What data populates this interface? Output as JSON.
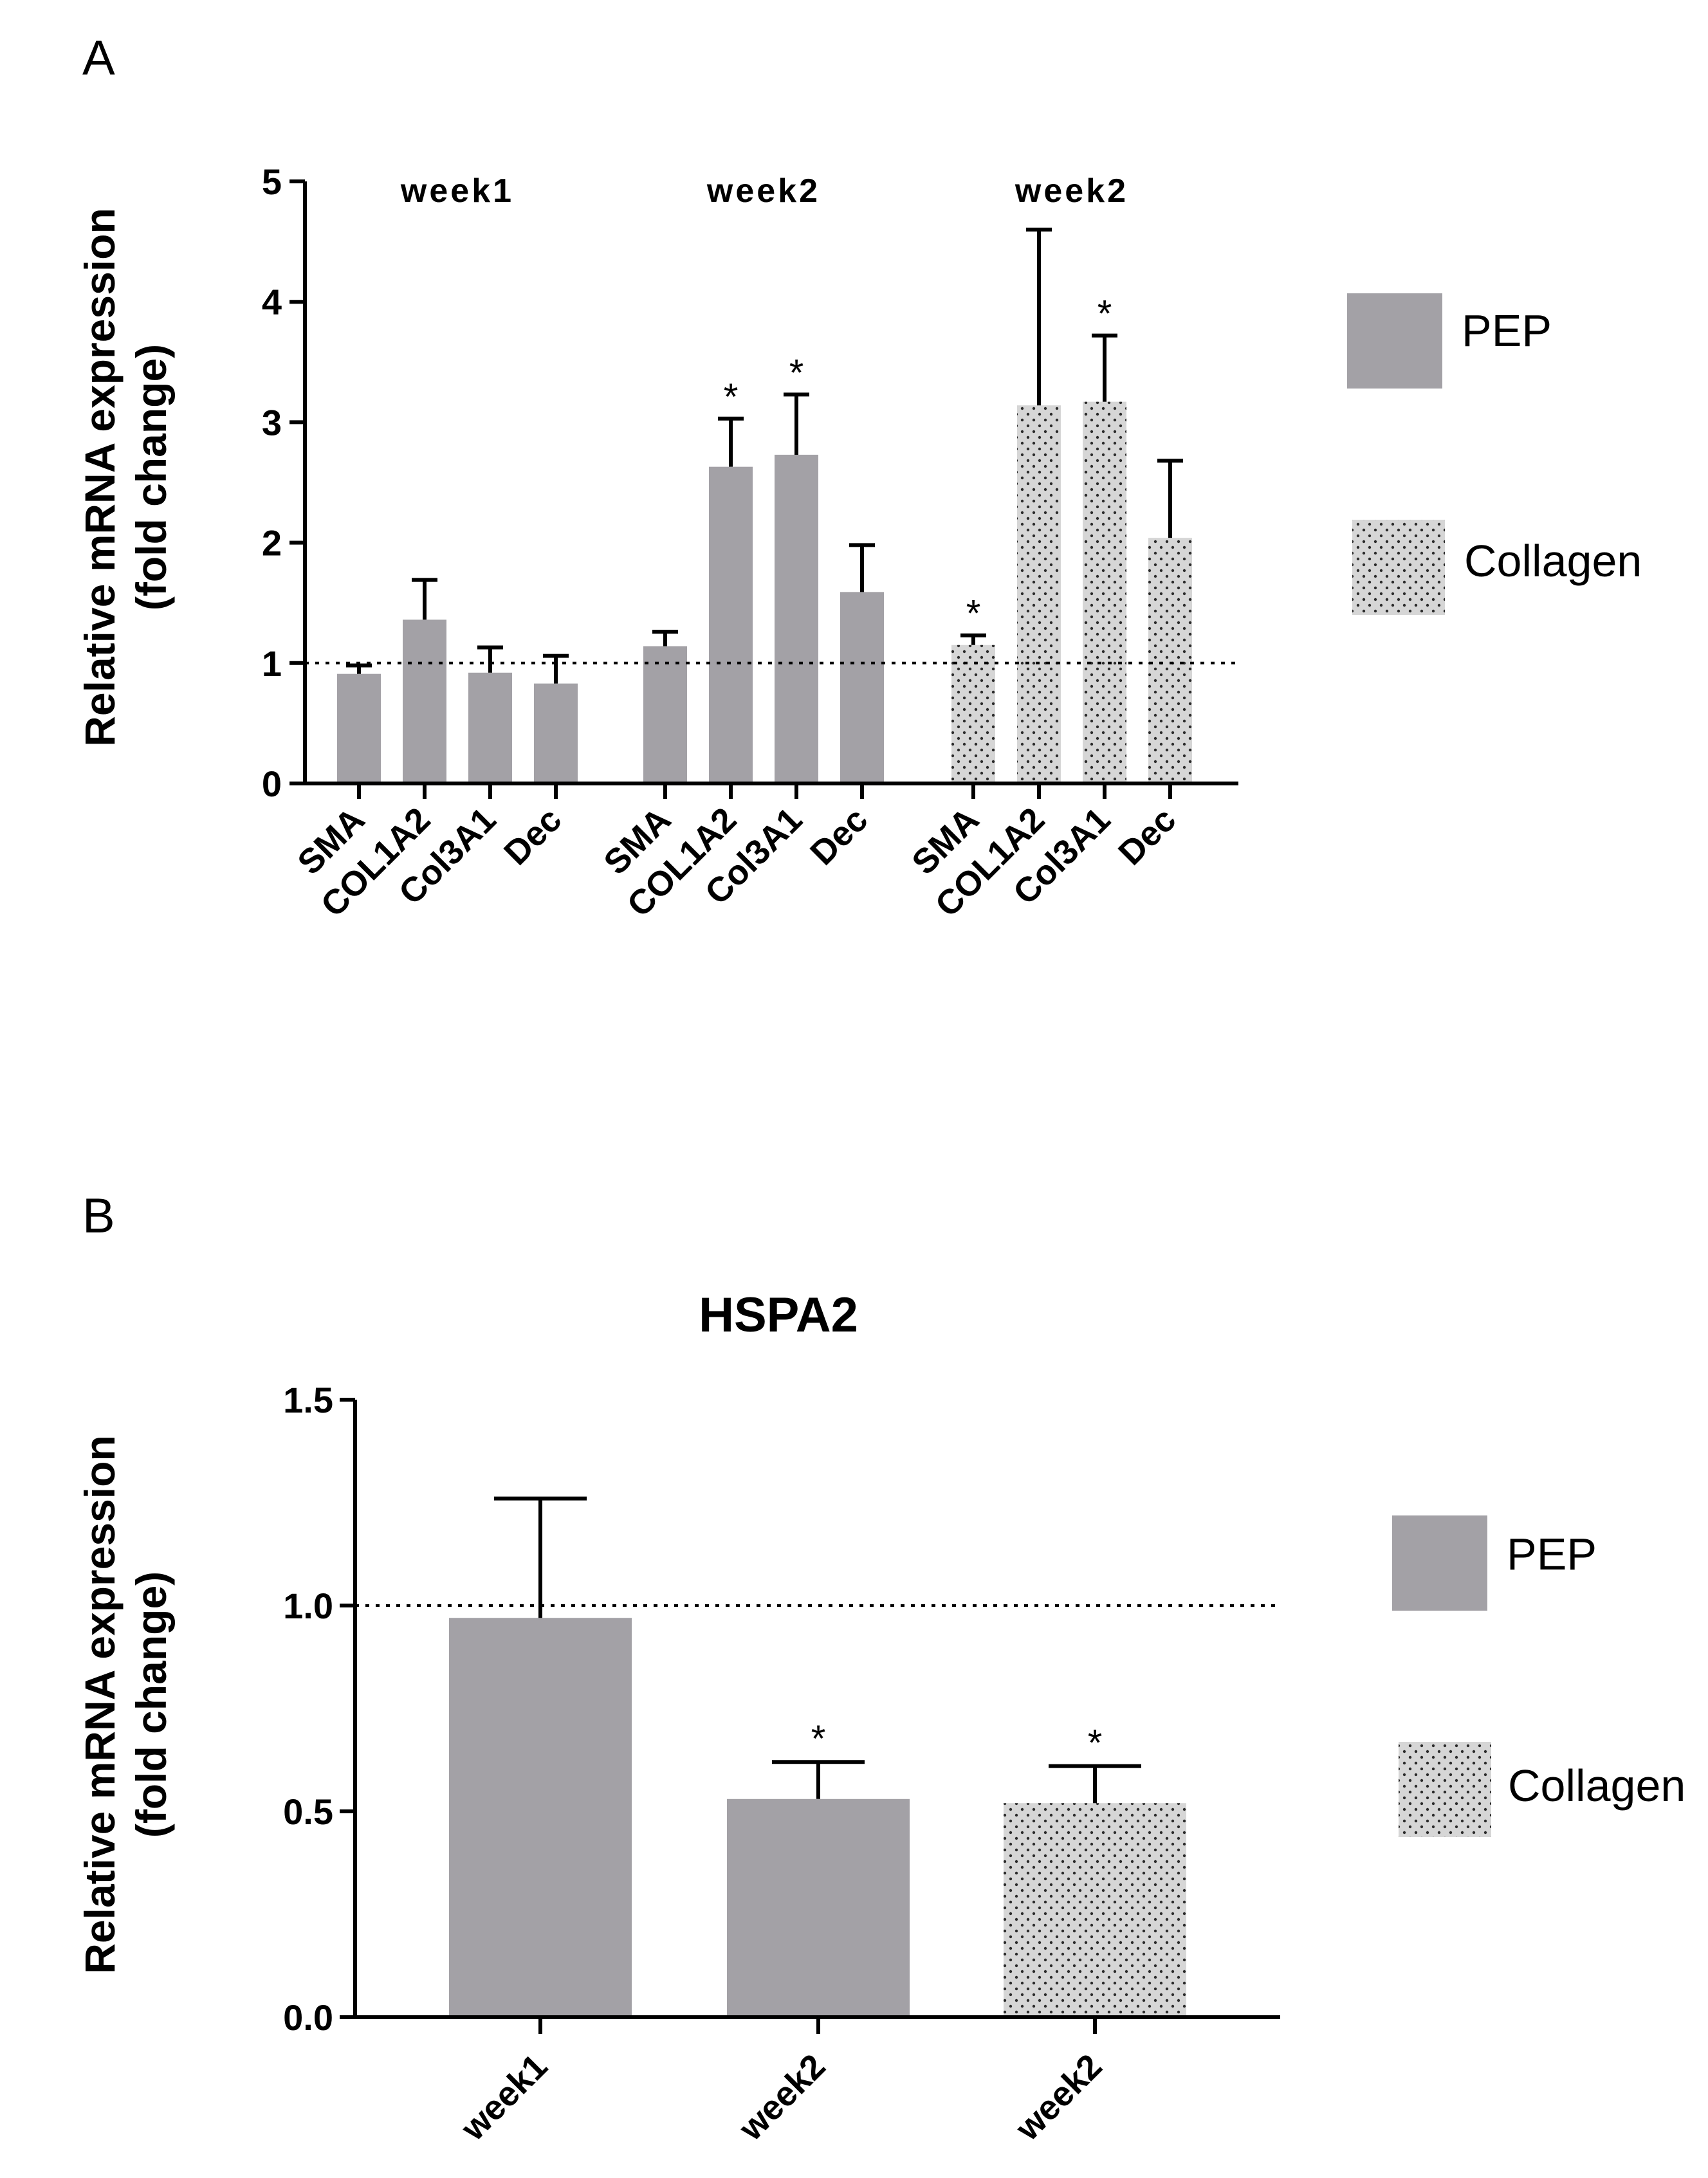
{
  "colors": {
    "pep": "#a3a1a6",
    "collagen": "#d6d6d6",
    "dot": "#2a2a2a",
    "axis": "#000000"
  },
  "legend_A": [
    {
      "label": "PEP",
      "series": "pep"
    },
    {
      "label": "Collagen",
      "series": "collagen"
    }
  ],
  "legend_B": [
    {
      "label": "PEP",
      "series": "pep"
    },
    {
      "label": "Collagen",
      "series": "collagen"
    }
  ],
  "chart_data": [
    {
      "panel_label": "A",
      "type": "bar",
      "title": "",
      "ylabel": "Relative mRNA expression",
      "ylabel2": "(fold change)",
      "ylim": [
        0,
        5
      ],
      "yticks": [
        "0",
        "1",
        "2",
        "3",
        "4",
        "5"
      ],
      "reference_line": 1,
      "groups": [
        {
          "label": "week1",
          "series": "pep",
          "bars": [
            {
              "category": "SMA",
              "value": 0.91,
              "error": 0.07,
              "sig": ""
            },
            {
              "category": "COL1A2",
              "value": 1.36,
              "error": 0.33,
              "sig": ""
            },
            {
              "category": "Col3A1",
              "value": 0.92,
              "error": 0.21,
              "sig": ""
            },
            {
              "category": "Dec",
              "value": 0.83,
              "error": 0.23,
              "sig": ""
            }
          ]
        },
        {
          "label": "week2",
          "series": "pep",
          "bars": [
            {
              "category": "SMA",
              "value": 1.14,
              "error": 0.12,
              "sig": ""
            },
            {
              "category": "COL1A2",
              "value": 2.63,
              "error": 0.4,
              "sig": "*"
            },
            {
              "category": "Col3A1",
              "value": 2.73,
              "error": 0.5,
              "sig": "*"
            },
            {
              "category": "Dec",
              "value": 1.59,
              "error": 0.39,
              "sig": ""
            }
          ]
        },
        {
          "label": "week2",
          "series": "collagen",
          "bars": [
            {
              "category": "SMA",
              "value": 1.15,
              "error": 0.08,
              "sig": "*"
            },
            {
              "category": "COL1A2",
              "value": 3.14,
              "error": 1.46,
              "sig": ""
            },
            {
              "category": "Col3A1",
              "value": 3.17,
              "error": 0.55,
              "sig": "*"
            },
            {
              "category": "Dec",
              "value": 2.04,
              "error": 0.64,
              "sig": ""
            }
          ]
        }
      ]
    },
    {
      "panel_label": "B",
      "type": "bar",
      "title": "HSPA2",
      "ylabel": "Relative mRNA expression",
      "ylabel2": "(fold change)",
      "ylim": [
        0,
        1.5
      ],
      "yticks": [
        "0.0",
        "0.5",
        "1.0",
        "1.5"
      ],
      "reference_line": 1,
      "bars": [
        {
          "category": "week1",
          "series": "pep",
          "value": 0.97,
          "error": 0.29,
          "sig": ""
        },
        {
          "category": "week2",
          "series": "pep",
          "value": 0.53,
          "error": 0.09,
          "sig": "*"
        },
        {
          "category": "week2",
          "series": "collagen",
          "value": 0.52,
          "error": 0.09,
          "sig": "*"
        }
      ]
    }
  ]
}
